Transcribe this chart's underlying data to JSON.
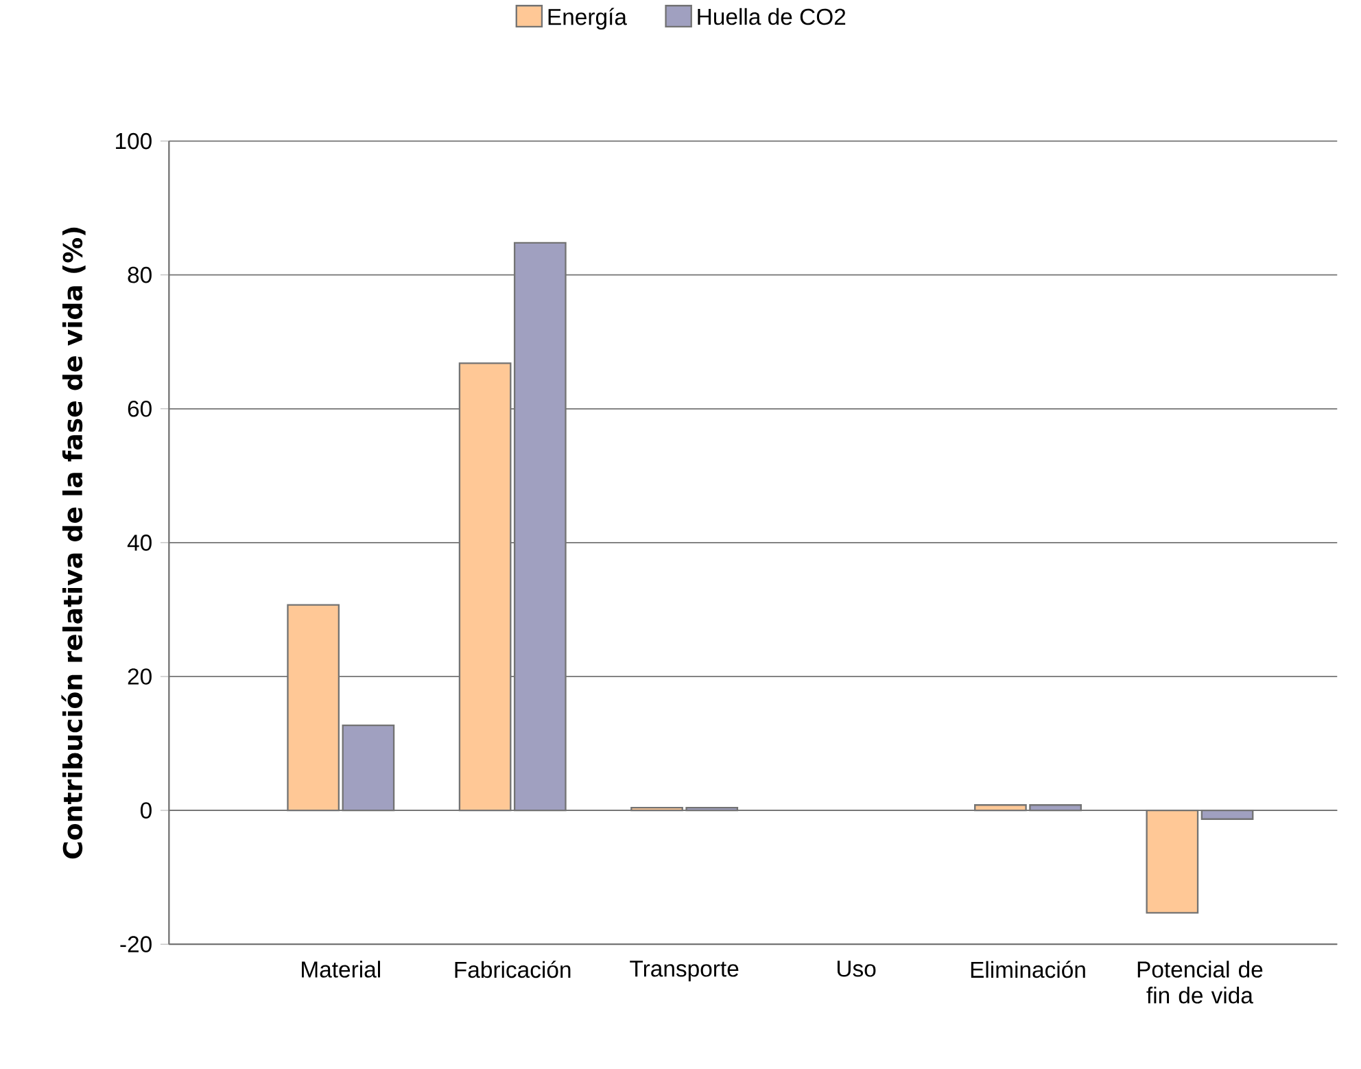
{
  "chart_data": {
    "type": "bar",
    "ylabel": "Contribución relativa de la fase de vida (%)",
    "categories": [
      "Material",
      "Fabricación",
      "Transporte",
      "Uso",
      "Eliminación",
      "Potencial de fin de vida"
    ],
    "series": [
      {
        "name": "Energía",
        "color": "#ffc896",
        "values": [
          30.7,
          66.8,
          0.4,
          null,
          0.8,
          -15.3
        ]
      },
      {
        "name": "Huella de CO2",
        "color": "#a0a0c0",
        "values": [
          12.7,
          84.8,
          0.4,
          null,
          0.8,
          -1.3
        ]
      }
    ],
    "ylim": [
      -20,
      100
    ],
    "yticks": [
      -20,
      0,
      20,
      40,
      60,
      80,
      100
    ],
    "grid": "y",
    "legend": "top"
  }
}
